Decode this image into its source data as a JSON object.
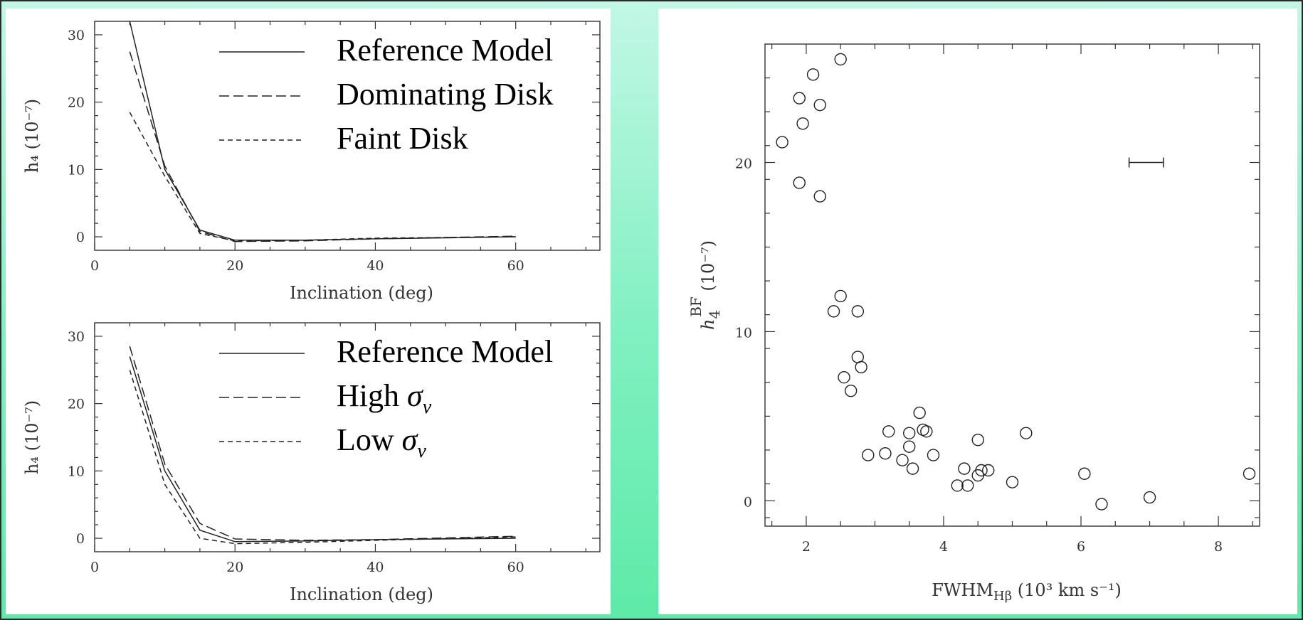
{
  "chart_data": [
    {
      "type": "line",
      "title": "",
      "xlabel": "Inclination (deg)",
      "ylabel": "h₄ (10⁻⁷)",
      "xlim": [
        0,
        72
      ],
      "ylim": [
        -2,
        32
      ],
      "xticks": [
        0,
        20,
        40,
        60
      ],
      "yticks": [
        0,
        10,
        20,
        30
      ],
      "legend_position": "top-right",
      "series": [
        {
          "name": "Reference Model",
          "dash": "solid",
          "x": [
            5,
            10,
            15,
            20,
            30,
            40,
            60
          ],
          "y": [
            32,
            10,
            1,
            -0.5,
            -0.5,
            -0.3,
            0
          ]
        },
        {
          "name": "Dominating Disk",
          "dash": "long",
          "x": [
            5,
            10,
            15,
            20,
            30,
            40,
            60
          ],
          "y": [
            27.5,
            10.5,
            0.8,
            -0.7,
            -0.6,
            -0.3,
            0.1
          ]
        },
        {
          "name": "Faint Disk",
          "dash": "short",
          "x": [
            5,
            10,
            15,
            20,
            30,
            40,
            60
          ],
          "y": [
            18.5,
            9,
            0.5,
            -0.6,
            -0.5,
            -0.2,
            0
          ]
        }
      ]
    },
    {
      "type": "line",
      "title": "",
      "xlabel": "Inclination (deg)",
      "ylabel": "h₄ (10⁻⁷)",
      "xlim": [
        0,
        72
      ],
      "ylim": [
        -2,
        32
      ],
      "xticks": [
        0,
        20,
        40,
        60
      ],
      "yticks": [
        0,
        10,
        20,
        30
      ],
      "legend_position": "top-right",
      "legend_display": [
        {
          "label": "Reference Model",
          "sym": ""
        },
        {
          "label": "High ",
          "sym": "σ",
          "sub": "v"
        },
        {
          "label": "Low ",
          "sym": "σ",
          "sub": "v"
        }
      ],
      "series": [
        {
          "name": "Reference Model",
          "dash": "solid",
          "x": [
            5,
            10,
            15,
            20,
            30,
            40,
            60
          ],
          "y": [
            27,
            10,
            1.2,
            -0.5,
            -0.4,
            -0.2,
            0
          ]
        },
        {
          "name": "High σv",
          "dash": "long",
          "x": [
            5,
            10,
            15,
            20,
            30,
            40,
            60
          ],
          "y": [
            28.5,
            11,
            2.2,
            -0.1,
            -0.3,
            -0.2,
            0.3
          ]
        },
        {
          "name": "Low σv",
          "dash": "short",
          "x": [
            5,
            10,
            15,
            20,
            30,
            40,
            60
          ],
          "y": [
            25,
            8,
            0,
            -0.8,
            -0.6,
            -0.3,
            0.2
          ]
        }
      ]
    },
    {
      "type": "scatter",
      "title": "",
      "xlabel": "FWHM",
      "xlabel_sub": "Hβ",
      "xlabel_rest": " (10³ km s⁻¹)",
      "ylabel": "h",
      "ylabel_sub": "4",
      "ylabel_sup": "BF",
      "ylabel_rest": " (10⁻⁷)",
      "xlim": [
        1.4,
        8.6
      ],
      "ylim": [
        -1.5,
        27
      ],
      "xticks": [
        2,
        4,
        6,
        8
      ],
      "yticks": [
        0,
        10,
        20
      ],
      "error_bar": {
        "x": 6.95,
        "y": 20,
        "half_width": 0.25
      },
      "points": [
        [
          1.65,
          21.2
        ],
        [
          1.9,
          23.8
        ],
        [
          1.95,
          22.3
        ],
        [
          2.1,
          25.2
        ],
        [
          2.5,
          26.1
        ],
        [
          2.2,
          23.4
        ],
        [
          1.9,
          18.8
        ],
        [
          2.2,
          18.0
        ],
        [
          2.5,
          12.1
        ],
        [
          2.4,
          11.2
        ],
        [
          2.75,
          11.2
        ],
        [
          2.75,
          8.5
        ],
        [
          2.8,
          7.9
        ],
        [
          2.55,
          7.3
        ],
        [
          2.65,
          6.5
        ],
        [
          3.65,
          5.2
        ],
        [
          3.7,
          4.2
        ],
        [
          3.75,
          4.1
        ],
        [
          3.5,
          4.0
        ],
        [
          3.2,
          4.1
        ],
        [
          3.5,
          3.2
        ],
        [
          3.15,
          2.8
        ],
        [
          2.9,
          2.7
        ],
        [
          3.85,
          2.7
        ],
        [
          3.4,
          2.4
        ],
        [
          3.55,
          1.9
        ],
        [
          4.5,
          3.6
        ],
        [
          5.2,
          4.0
        ],
        [
          4.3,
          1.9
        ],
        [
          4.55,
          1.8
        ],
        [
          4.65,
          1.8
        ],
        [
          4.5,
          1.5
        ],
        [
          4.2,
          0.9
        ],
        [
          4.35,
          0.9
        ],
        [
          5.0,
          1.1
        ],
        [
          6.05,
          1.6
        ],
        [
          6.3,
          -0.2
        ],
        [
          7.0,
          0.2
        ],
        [
          8.45,
          1.6
        ]
      ]
    }
  ]
}
